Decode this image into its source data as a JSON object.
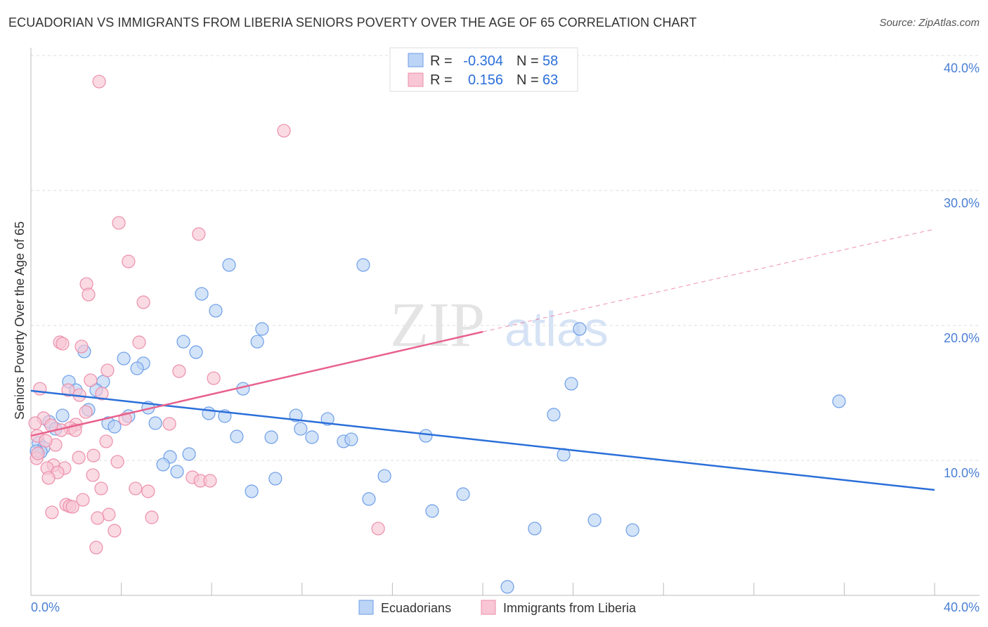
{
  "title": "ECUADORIAN VS IMMIGRANTS FROM LIBERIA SENIORS POVERTY OVER THE AGE OF 65 CORRELATION CHART",
  "source": "Source: ZipAtlas.com",
  "watermark": "ZIPatlas",
  "chart_data": {
    "type": "scatter",
    "title": "ECUADORIAN VS IMMIGRANTS FROM LIBERIA SENIORS POVERTY OVER THE AGE OF 65 CORRELATION CHART",
    "xlabel": "",
    "ylabel": "Seniors Poverty Over the Age of 65",
    "xlim": [
      0,
      40
    ],
    "ylim": [
      0,
      40
    ],
    "x_tick_labels": [
      "0.0%",
      "40.0%"
    ],
    "y_ticks": [
      10,
      20,
      30,
      40
    ],
    "y_tick_labels": [
      "10.0%",
      "20.0%",
      "30.0%",
      "40.0%"
    ],
    "grid": true,
    "legend_stats": [
      {
        "r_label": "R =",
        "r": "-0.304",
        "n_label": "N =",
        "n": "58"
      },
      {
        "r_label": "R =",
        "r": "0.156",
        "n_label": "N =",
        "n": "63"
      }
    ],
    "series": [
      {
        "name": "Ecuadorians",
        "color": "#6d9ee8",
        "fill": "#bcd4f5",
        "line_color": "#2b6fd9",
        "trend": {
          "x": [
            0,
            40
          ],
          "y": [
            15.16,
            7.81
          ]
        },
        "points": [
          [
            8.77,
            24.48
          ],
          [
            14.71,
            24.48
          ],
          [
            7.56,
            22.34
          ],
          [
            8.18,
            21.09
          ],
          [
            10.23,
            19.74
          ],
          [
            24.29,
            19.74
          ],
          [
            10.02,
            18.8
          ],
          [
            6.75,
            18.8
          ],
          [
            2.36,
            18.07
          ],
          [
            7.31,
            18.02
          ],
          [
            4.11,
            17.55
          ],
          [
            4.98,
            17.19
          ],
          [
            4.7,
            16.82
          ],
          [
            1.68,
            15.83
          ],
          [
            3.2,
            15.83
          ],
          [
            23.92,
            15.68
          ],
          [
            9.39,
            15.31
          ],
          [
            1.99,
            15.21
          ],
          [
            2.89,
            15.21
          ],
          [
            35.77,
            14.38
          ],
          [
            2.55,
            13.75
          ],
          [
            5.19,
            13.91
          ],
          [
            1.4,
            13.33
          ],
          [
            4.32,
            13.28
          ],
          [
            7.87,
            13.49
          ],
          [
            8.58,
            13.28
          ],
          [
            11.73,
            13.33
          ],
          [
            23.14,
            13.39
          ],
          [
            13.13,
            13.07
          ],
          [
            0.81,
            12.86
          ],
          [
            3.42,
            12.76
          ],
          [
            5.51,
            12.76
          ],
          [
            3.7,
            12.5
          ],
          [
            1.09,
            12.34
          ],
          [
            11.94,
            12.34
          ],
          [
            17.48,
            11.82
          ],
          [
            9.11,
            11.77
          ],
          [
            10.64,
            11.72
          ],
          [
            12.44,
            11.72
          ],
          [
            13.84,
            11.41
          ],
          [
            14.18,
            11.56
          ],
          [
            0.34,
            11.3
          ],
          [
            0.56,
            10.94
          ],
          [
            0.44,
            10.63
          ],
          [
            0.25,
            10.68
          ],
          [
            6.16,
            10.26
          ],
          [
            7.0,
            10.47
          ],
          [
            23.58,
            10.42
          ],
          [
            5.85,
            9.69
          ],
          [
            6.47,
            9.17
          ],
          [
            15.65,
            8.85
          ],
          [
            10.82,
            8.65
          ],
          [
            9.77,
            7.71
          ],
          [
            19.13,
            7.5
          ],
          [
            14.96,
            7.14
          ],
          [
            17.76,
            6.25
          ],
          [
            22.3,
            4.95
          ],
          [
            24.95,
            5.57
          ],
          [
            26.63,
            4.84
          ],
          [
            21.09,
            0.63
          ]
        ]
      },
      {
        "name": "Immigrants from Liberia",
        "color": "#ec8fab",
        "fill": "#f8c6d4",
        "line_color": "#e8608c",
        "trend": {
          "x": [
            0,
            20,
            40
          ],
          "y": [
            11.82,
            19.53,
            27.14
          ],
          "solid_until": 20
        },
        "points": [
          [
            3.02,
            38.07
          ],
          [
            11.2,
            34.43
          ],
          [
            3.89,
            27.6
          ],
          [
            7.43,
            26.77
          ],
          [
            4.32,
            24.74
          ],
          [
            2.46,
            23.07
          ],
          [
            2.55,
            22.29
          ],
          [
            4.98,
            21.72
          ],
          [
            1.28,
            18.75
          ],
          [
            1.4,
            18.65
          ],
          [
            2.24,
            18.44
          ],
          [
            4.79,
            18.75
          ],
          [
            3.39,
            16.67
          ],
          [
            6.56,
            16.61
          ],
          [
            8.09,
            16.09
          ],
          [
            0.4,
            15.31
          ],
          [
            1.65,
            15.21
          ],
          [
            2.64,
            15.94
          ],
          [
            3.14,
            14.95
          ],
          [
            2.15,
            14.84
          ],
          [
            2.43,
            13.59
          ],
          [
            0.56,
            13.13
          ],
          [
            4.17,
            13.07
          ],
          [
            0.19,
            12.76
          ],
          [
            1.99,
            12.66
          ],
          [
            1.74,
            12.4
          ],
          [
            6.13,
            12.71
          ],
          [
            1.34,
            12.24
          ],
          [
            1.96,
            12.24
          ],
          [
            0.9,
            12.6
          ],
          [
            0.28,
            11.82
          ],
          [
            3.33,
            11.41
          ],
          [
            1.09,
            11.15
          ],
          [
            0.65,
            11.46
          ],
          [
            0.25,
            10.16
          ],
          [
            0.31,
            10.52
          ],
          [
            2.77,
            10.36
          ],
          [
            2.12,
            10.21
          ],
          [
            3.83,
            9.9
          ],
          [
            1.0,
            9.64
          ],
          [
            0.72,
            9.43
          ],
          [
            1.49,
            9.43
          ],
          [
            1.18,
            9.11
          ],
          [
            2.74,
            8.91
          ],
          [
            0.78,
            8.7
          ],
          [
            7.15,
            8.75
          ],
          [
            7.5,
            8.49
          ],
          [
            7.93,
            8.49
          ],
          [
            3.11,
            7.92
          ],
          [
            4.63,
            7.92
          ],
          [
            5.19,
            7.71
          ],
          [
            2.3,
            7.08
          ],
          [
            1.56,
            6.72
          ],
          [
            1.71,
            6.61
          ],
          [
            1.84,
            6.56
          ],
          [
            0.93,
            6.15
          ],
          [
            3.45,
            5.99
          ],
          [
            2.95,
            5.73
          ],
          [
            5.35,
            5.78
          ],
          [
            15.37,
            4.95
          ],
          [
            3.7,
            4.79
          ],
          [
            2.89,
            3.54
          ]
        ]
      }
    ]
  }
}
